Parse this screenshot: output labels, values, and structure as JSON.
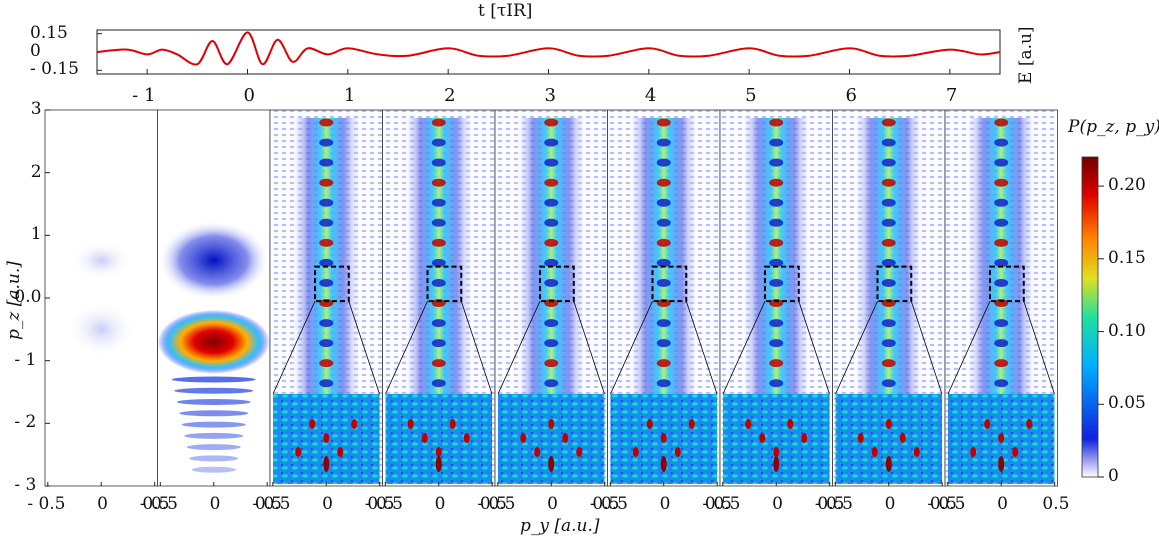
{
  "chart_data": [
    {
      "type": "line",
      "title": "",
      "xlabel": "t [τIR]",
      "ylabel": "E [a.u]",
      "xlim": [
        -1.5,
        7.5
      ],
      "ylim": [
        -0.18,
        0.18
      ],
      "x_ticks": [
        "- 1",
        "0",
        "1",
        "2",
        "3",
        "4",
        "5",
        "6",
        "7"
      ],
      "y_ticks": [
        "0.15",
        "0",
        "- 0.15"
      ],
      "color": "#e00000",
      "series": [
        {
          "x": [
            -1.5,
            -1.2,
            -1.0,
            -0.85,
            -0.7,
            -0.5,
            -0.35,
            -0.2,
            0.0,
            0.15,
            0.3,
            0.45,
            0.6,
            0.8,
            1.0,
            1.3,
            1.6,
            2.0,
            2.3,
            2.6,
            3.0,
            3.3,
            3.6,
            4.0,
            4.3,
            4.6,
            5.0,
            5.3,
            5.6,
            6.0,
            6.3,
            6.6,
            7.0,
            7.3,
            7.5
          ],
          "values": [
            0.0,
            0.02,
            -0.02,
            0.02,
            -0.02,
            -0.1,
            0.09,
            -0.1,
            0.16,
            -0.1,
            0.1,
            -0.08,
            0.03,
            -0.02,
            0.03,
            -0.02,
            -0.03,
            0.03,
            -0.03,
            -0.03,
            0.03,
            -0.03,
            -0.03,
            0.03,
            -0.03,
            -0.03,
            0.03,
            -0.03,
            -0.03,
            0.03,
            -0.03,
            -0.03,
            0.02,
            -0.02,
            0.0
          ]
        }
      ]
    },
    {
      "type": "heatmap",
      "title": "",
      "xlabel": "p_y [a.u.]",
      "ylabel": "p_z [a.u.]",
      "panels": [
        "- 1",
        "0",
        "1",
        "2",
        "3",
        "4",
        "5",
        "6",
        "7"
      ],
      "xlim": [
        -0.5,
        0.5
      ],
      "ylim": [
        -3,
        3
      ],
      "x_ticks": [
        "- 0.5",
        "0",
        "0.5"
      ],
      "y_ticks": [
        "3",
        "2",
        "1",
        "0.0",
        "- 1",
        "- 2",
        "- 3"
      ],
      "inset_region": {
        "py": [
          -0.1,
          0.2
        ],
        "pz": [
          -0.05,
          0.5
        ]
      },
      "colorbar": {
        "label": "P(p_z, p_y)",
        "range": [
          0,
          0.22
        ],
        "ticks": [
          "0.20",
          "0.15",
          "0.10",
          "0.05",
          "0"
        ],
        "tick_values": [
          0.2,
          0.15,
          0.1,
          0.05,
          0
        ]
      }
    }
  ]
}
